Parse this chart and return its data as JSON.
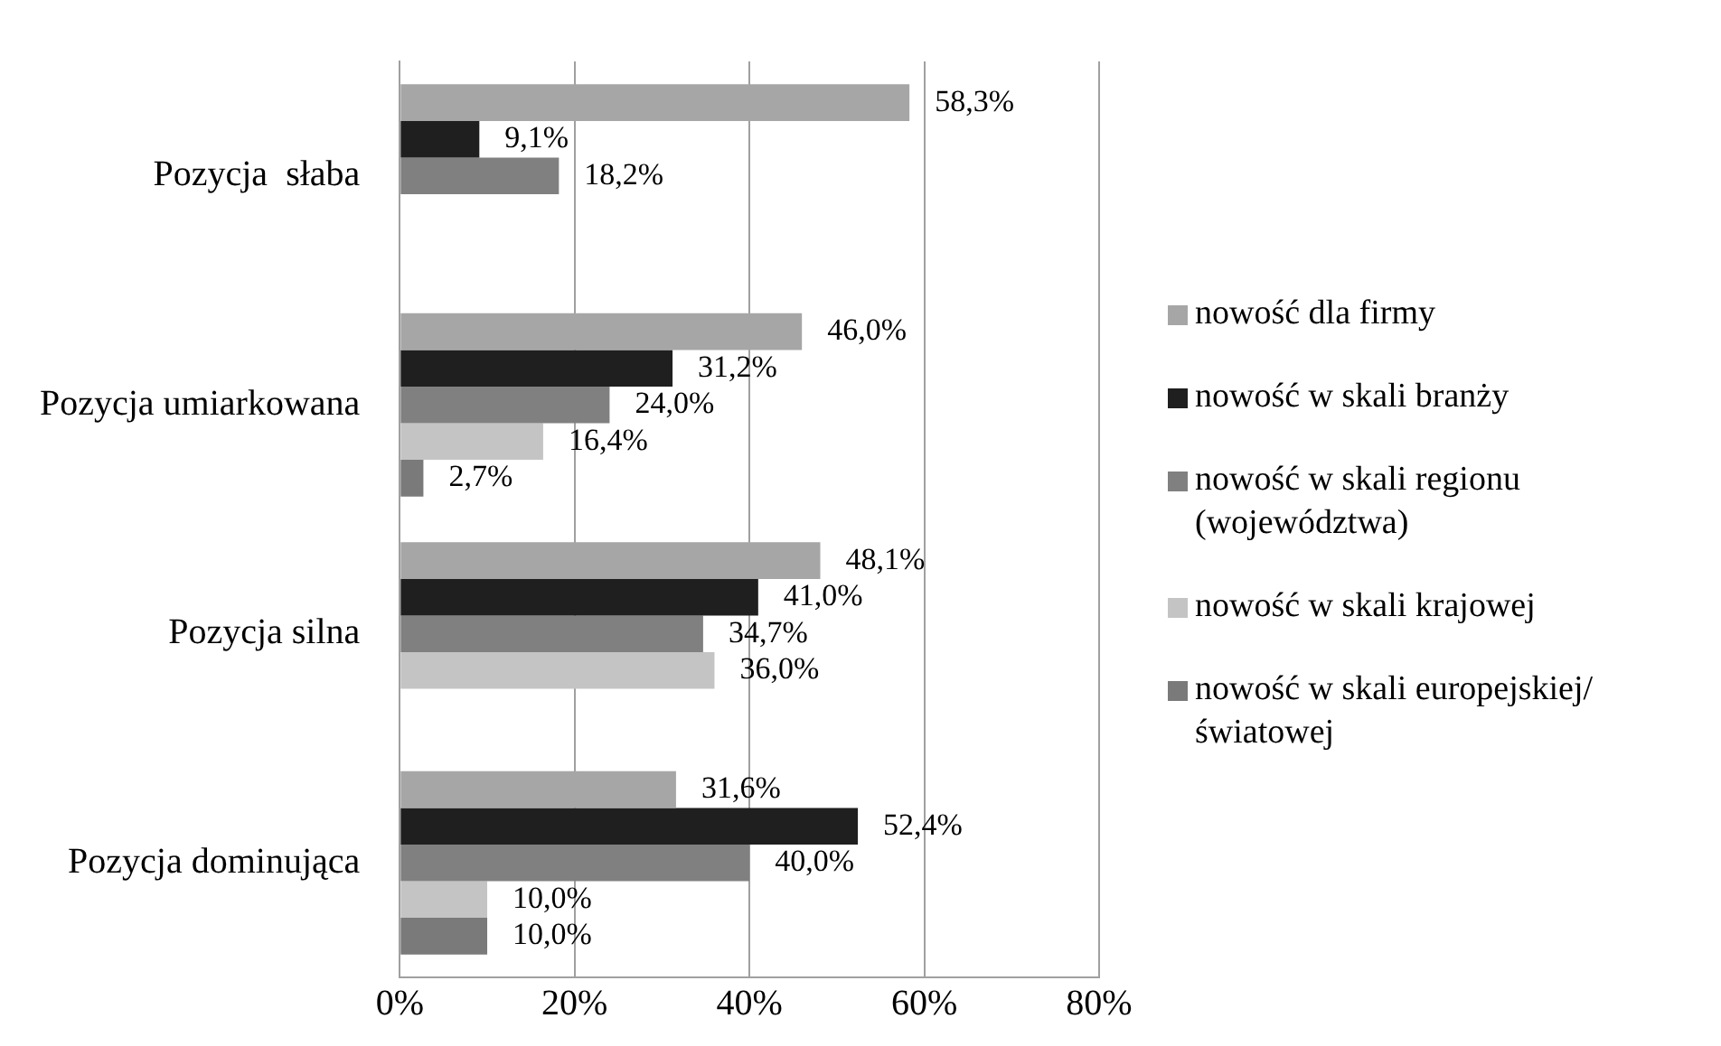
{
  "chart_data": {
    "type": "bar",
    "orientation": "horizontal",
    "categories": [
      "Pozycja  słaba",
      "Pozycja umiarkowana",
      "Pozycja silna",
      "Pozycja dominująca"
    ],
    "series": [
      {
        "name": "nowość dla firmy",
        "color": "#a6a6a6",
        "values": [
          58.3,
          46.0,
          48.1,
          31.6
        ],
        "value_labels": [
          "58,3%",
          "46,0%",
          "48,1%",
          "31,6%"
        ]
      },
      {
        "name": "nowość w skali branży",
        "color": "#1f1f1f",
        "values": [
          9.1,
          31.2,
          41.0,
          52.4
        ],
        "value_labels": [
          "9,1%",
          "31,2%",
          "41,0%",
          "52,4%"
        ]
      },
      {
        "name": "nowość w skali regionu (województwa)",
        "color": "#808080",
        "values": [
          18.2,
          24.0,
          34.7,
          40.0
        ],
        "value_labels": [
          "18,2%",
          "24,0%",
          "34,7%",
          "40,0%"
        ]
      },
      {
        "name": "nowość w skali krajowej",
        "color": "#c4c4c4",
        "values": [
          null,
          16.4,
          36.0,
          10.0
        ],
        "value_labels": [
          null,
          "16,4%",
          "36,0%",
          "10,0%"
        ]
      },
      {
        "name": "nowość w skali europejskiej/światowej",
        "color": "#7a7a7a",
        "values": [
          null,
          2.7,
          null,
          10.0
        ],
        "value_labels": [
          null,
          "2,7%",
          null,
          "10,0%"
        ]
      }
    ],
    "xlim": [
      0,
      80
    ],
    "xticks": [
      {
        "value": 0,
        "label": "0%"
      },
      {
        "value": 20,
        "label": "20%"
      },
      {
        "value": 40,
        "label": "40%"
      },
      {
        "value": 60,
        "label": "60%"
      },
      {
        "value": 80,
        "label": "80%"
      }
    ],
    "grid": "x",
    "legend": "right"
  }
}
